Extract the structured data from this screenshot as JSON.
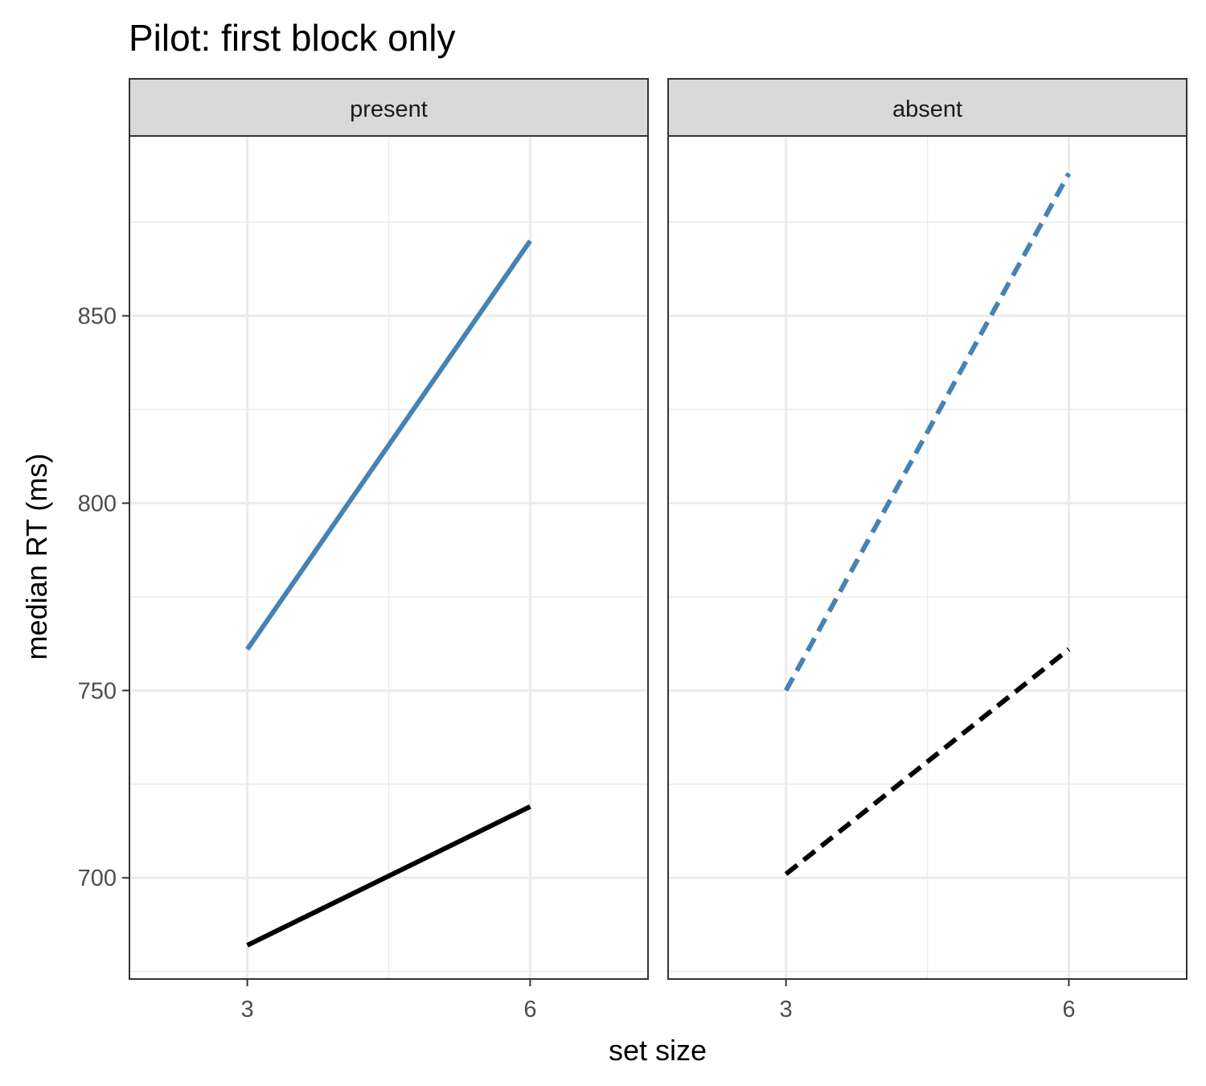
{
  "chart_data": {
    "type": "line",
    "title": "Pilot: first block only",
    "xlabel": "set size",
    "ylabel": "median RT (ms)",
    "x_ticks": [
      3,
      6
    ],
    "y_ticks": [
      700,
      750,
      800,
      850
    ],
    "xlim": [
      1.75,
      7.25
    ],
    "ylim": [
      673,
      898
    ],
    "grid": true,
    "legend": "none",
    "panels": [
      {
        "label": "present",
        "series": [
          {
            "color": "#4682b4",
            "linetype": "solid",
            "x": [
              3,
              6
            ],
            "y": [
              761,
              870
            ]
          },
          {
            "color": "#000000",
            "linetype": "solid",
            "x": [
              3,
              6
            ],
            "y": [
              682,
              719
            ]
          }
        ]
      },
      {
        "label": "absent",
        "series": [
          {
            "color": "#4682b4",
            "linetype": "dashed",
            "x": [
              3,
              6
            ],
            "y": [
              750,
              888
            ]
          },
          {
            "color": "#000000",
            "linetype": "dashed",
            "x": [
              3,
              6
            ],
            "y": [
              701,
              761
            ]
          }
        ]
      }
    ]
  }
}
